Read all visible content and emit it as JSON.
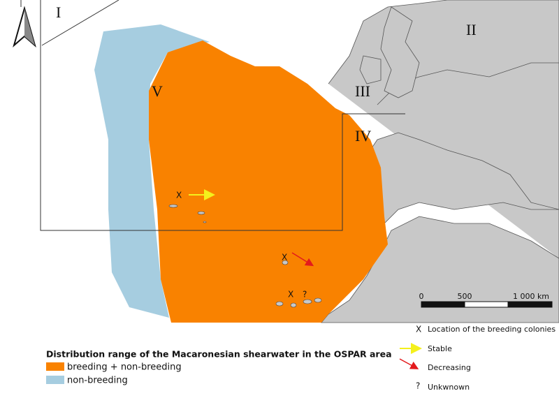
{
  "regions": [
    "I",
    "II",
    "III",
    "IV",
    "V"
  ],
  "map_markers": {
    "colonies": [
      "X",
      "X",
      "X"
    ],
    "unknown": "?"
  },
  "scale": {
    "labels": [
      "0",
      "500",
      "1 000 km"
    ]
  },
  "legend": {
    "title": "Distribution range of the Macaronesian shearwater in the OSPAR area",
    "items": [
      "breeding + non-breeding",
      "non-breeding"
    ]
  },
  "symbol_legend": [
    {
      "symbol": "X",
      "label": "Location of the breeding colonies"
    },
    {
      "label": "Stable"
    },
    {
      "label": "Decreasing"
    },
    {
      "symbol": "?",
      "label": "Unkwnown"
    }
  ]
}
